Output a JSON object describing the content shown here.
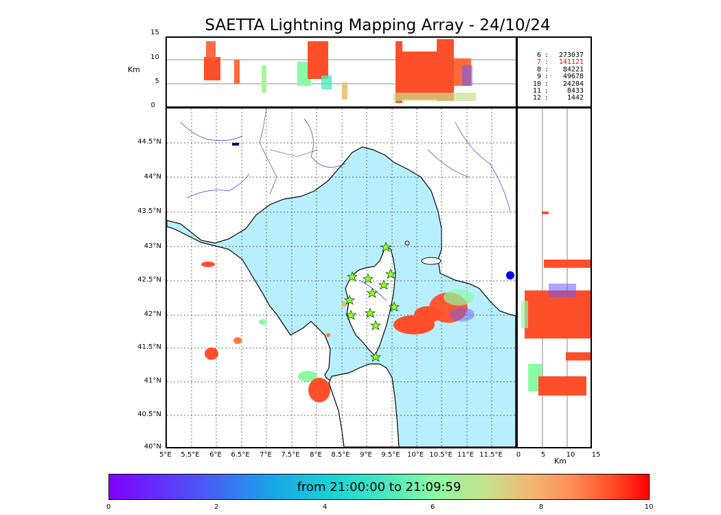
{
  "title": "SAETTA Lightning Mapping Array - 24/10/24",
  "top_panel": {
    "ylabel": "Km",
    "yticks": [
      "15",
      "10",
      "5",
      "0"
    ]
  },
  "legend": {
    "rows": [
      {
        "key": "6",
        "value": "273037",
        "color": "#000000"
      },
      {
        "key": "7",
        "value": "141121",
        "color": "#ff0000"
      },
      {
        "key": "8",
        "value": "84221",
        "color": "#000000"
      },
      {
        "key": "9",
        "value": "49678",
        "color": "#000000"
      },
      {
        "key": "10",
        "value": "24204",
        "color": "#000000"
      },
      {
        "key": "11",
        "value": "8433",
        "color": "#000000"
      },
      {
        "key": "12",
        "value": "1442",
        "color": "#000000"
      }
    ]
  },
  "map": {
    "lat_labels": [
      "44.5°N",
      "44°N",
      "43.5°N",
      "43°N",
      "42.5°N",
      "42°N",
      "41.5°N",
      "41°N",
      "40.5°N",
      "40°N"
    ],
    "lon_labels": [
      "5°E",
      "5.5°E",
      "6°E",
      "6.5°E",
      "7°E",
      "7.5°E",
      "8°E",
      "8.5°E",
      "9°E",
      "9.5°E",
      "10°E",
      "10.5°E",
      "11°E",
      "11.5°E"
    ],
    "sea_color": "#b8efff",
    "station_icon": "star-icon"
  },
  "side_panel": {
    "xlabel": "Km",
    "xticks": [
      "0",
      "5",
      "10",
      "15"
    ]
  },
  "colorbar": {
    "text": "from 21:00:00 to 21:09:59",
    "ticks": [
      "0",
      "2",
      "4",
      "6",
      "8",
      "10"
    ],
    "colormap": "rainbow"
  }
}
